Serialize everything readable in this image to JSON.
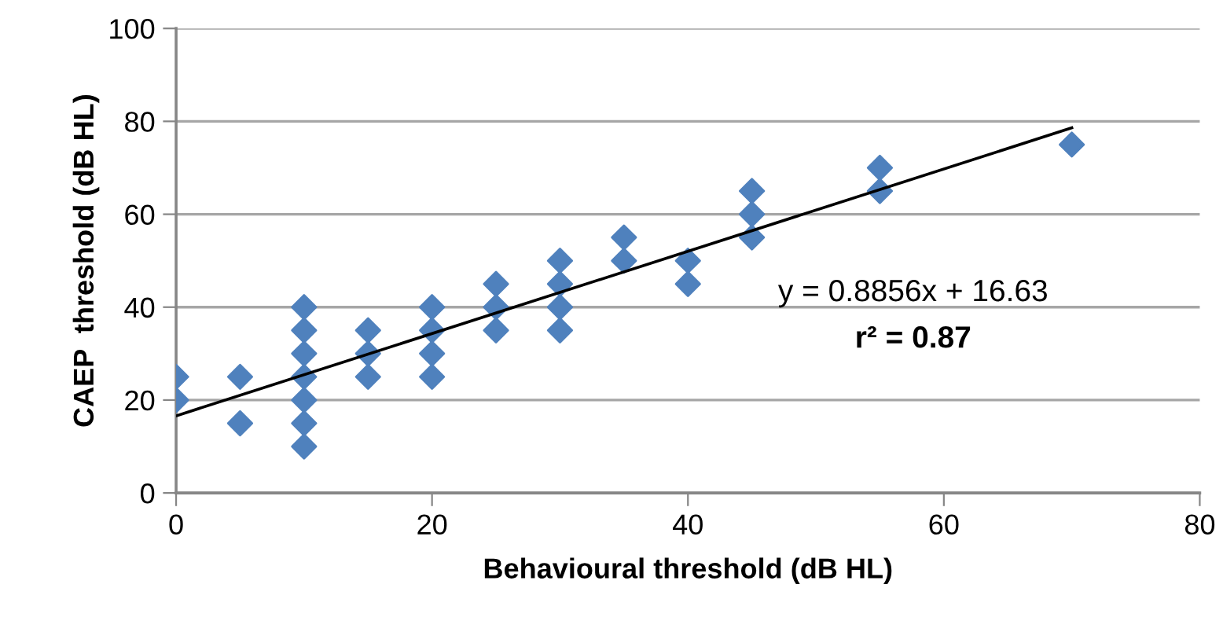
{
  "chart_data": {
    "type": "scatter",
    "xlabel": "Behavioural threshold (dB HL)",
    "ylabel": "CAEP  threshold (dB HL)",
    "xlim": [
      0,
      80
    ],
    "ylim": [
      0,
      100
    ],
    "xticks": [
      0,
      20,
      40,
      60,
      80
    ],
    "yticks": [
      0,
      20,
      40,
      60,
      80,
      100
    ],
    "grid": "y",
    "series": [
      {
        "marker": "diamond",
        "color": "#4f81bd",
        "x": [
          0,
          0,
          5,
          5,
          10,
          10,
          10,
          10,
          10,
          10,
          10,
          15,
          15,
          15,
          20,
          20,
          20,
          20,
          25,
          25,
          25,
          30,
          30,
          30,
          30,
          35,
          35,
          40,
          40,
          45,
          45,
          45,
          55,
          55,
          70
        ],
        "values": [
          25,
          20,
          25,
          15,
          40,
          35,
          30,
          25,
          20,
          15,
          10,
          35,
          30,
          25,
          40,
          35,
          30,
          25,
          45,
          40,
          35,
          50,
          45,
          40,
          35,
          55,
          50,
          50,
          45,
          65,
          60,
          55,
          70,
          65,
          75
        ]
      },
      {
        "type": "line",
        "color": "#000000",
        "x": [
          0,
          70
        ],
        "values": [
          16.6,
          78.6
        ],
        "marker": "none",
        "line_style": "solid"
      }
    ],
    "annotations": [
      "y = 0.8856x + 16.63",
      "r² = 0.87"
    ]
  }
}
